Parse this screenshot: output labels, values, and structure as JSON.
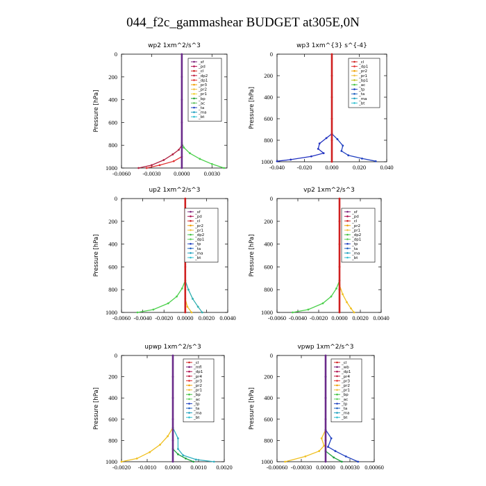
{
  "title": "044_f2c_gammashear  BUDGET at305E,0N",
  "chart_data": [
    {
      "type": "line",
      "title": "wp2   1xm^2/s^3",
      "ylabel": "Pressure [hPa]",
      "ylim": [
        1000,
        0
      ],
      "xlim": [
        -0.006,
        0.0045
      ],
      "xticks": [
        "-0.0060",
        "-0.0030",
        "0.0000",
        "0.0030"
      ],
      "xtick_values": [
        -0.006,
        -0.003,
        0.0,
        0.003
      ],
      "yticks": [
        0,
        200,
        400,
        600,
        800,
        1000
      ],
      "legend": [
        "_sf",
        "_pd",
        "_cl",
        "_dp2",
        "_dp1",
        "_pr3",
        "_pr2",
        "_pr1",
        "_bp",
        "_ac",
        "_ta",
        "_ma",
        "_bt"
      ],
      "legend_colors": [
        "#7a1f7a",
        "#b01050",
        "#d02020",
        "#c02040",
        "#e03030",
        "#f0a000",
        "#f0c040",
        "#f0d030",
        "#20a030",
        "#60c060",
        "#2040c0",
        "#20a0c0",
        "#30c0d0"
      ],
      "series": [
        {
          "name": "_pr2",
          "color": "#4cd04c",
          "x": [
            0.0,
            0.0002,
            0.0008,
            0.0018,
            0.003,
            0.0042
          ],
          "y": [
            780,
            820,
            870,
            920,
            965,
            1000
          ]
        },
        {
          "name": "_dp1",
          "color": "#b02040",
          "x": [
            0.0,
            -0.0003,
            -0.0009,
            -0.0018,
            -0.003,
            -0.0043
          ],
          "y": [
            800,
            840,
            880,
            930,
            975,
            1000
          ]
        },
        {
          "name": "_pr3",
          "color": "#e03030",
          "x": [
            0.0,
            -0.0008,
            -0.0022,
            -0.0035
          ],
          "y": [
            900,
            940,
            975,
            1000
          ]
        },
        {
          "name": "_sf",
          "color": "#6a2a8a",
          "x": [
            0.0,
            0.0,
            0.0,
            0.0,
            0.0,
            0.0
          ],
          "y": [
            0,
            200,
            400,
            600,
            800,
            1000
          ]
        }
      ]
    },
    {
      "type": "line",
      "title": "wp3   1xm^{3} s^{-4}",
      "ylabel": "Pressure [hPa]",
      "ylim": [
        1000,
        0
      ],
      "xlim": [
        -0.04,
        0.04
      ],
      "xticks": [
        "-0.040",
        "-0.020",
        "0.000",
        "0.020",
        "0.040"
      ],
      "xtick_values": [
        -0.04,
        -0.02,
        0.0,
        0.02,
        0.04
      ],
      "yticks": [
        0,
        200,
        400,
        600,
        800,
        1000
      ],
      "legend": [
        "_cl",
        "_dp1",
        "_pr2",
        "_pr1",
        "_bp1",
        "_ac",
        "_tp",
        "_ta",
        "_ma",
        "_bt"
      ],
      "legend_colors": [
        "#d02020",
        "#e03030",
        "#f0a000",
        "#f0c040",
        "#c0c020",
        "#40c040",
        "#2040c0",
        "#2060c0",
        "#20a0c0",
        "#30c0d0"
      ],
      "series": [
        {
          "name": "_tp",
          "color": "#2030c0",
          "x": [
            0.0,
            -0.004,
            -0.009,
            -0.01,
            -0.006,
            -0.015,
            -0.03,
            -0.04
          ],
          "y": [
            740,
            780,
            830,
            880,
            920,
            950,
            980,
            995
          ]
        },
        {
          "name": "_ta",
          "color": "#2040c0",
          "x": [
            0.0,
            0.004,
            0.008,
            0.007,
            0.012,
            0.022,
            0.032
          ],
          "y": [
            740,
            790,
            850,
            900,
            940,
            970,
            995
          ]
        },
        {
          "name": "_cl",
          "color": "#d02020",
          "x": [
            0.0,
            0.0,
            0.0,
            0.0,
            0.0,
            0.0
          ],
          "y": [
            0,
            200,
            400,
            600,
            800,
            1000
          ]
        }
      ]
    },
    {
      "type": "line",
      "title": "up2   1xm^2/s^3",
      "ylabel": "Pressure [hPa]",
      "ylim": [
        1000,
        0
      ],
      "xlim": [
        -0.006,
        0.004
      ],
      "xticks": [
        "-0.0060",
        "-0.0040",
        "-0.0020",
        "0.0000",
        "0.0020",
        "0.0040"
      ],
      "xtick_values": [
        -0.006,
        -0.004,
        -0.002,
        0.0,
        0.002,
        0.004
      ],
      "yticks": [
        0,
        200,
        400,
        600,
        800,
        1000
      ],
      "legend": [
        "_sf",
        "_pd",
        "_cl",
        "_pr2",
        "_pr1",
        "_dp2",
        "_dp1",
        "_tp",
        "_ta",
        "_ma",
        "_bt"
      ],
      "legend_colors": [
        "#7a1f7a",
        "#b01050",
        "#d02020",
        "#f0a000",
        "#f0c040",
        "#40c040",
        "#60d060",
        "#2040c0",
        "#2060c0",
        "#20a0c0",
        "#30c0d0"
      ],
      "series": [
        {
          "name": "_dp1",
          "color": "#4cd04c",
          "x": [
            0.0,
            -0.0003,
            -0.0008,
            -0.0016,
            -0.003,
            -0.0045
          ],
          "y": [
            720,
            790,
            860,
            920,
            975,
            1000
          ]
        },
        {
          "name": "_pr1",
          "color": "#30b0b0",
          "x": [
            0.0,
            0.0003,
            0.0007,
            0.0012,
            0.0016
          ],
          "y": [
            720,
            800,
            880,
            950,
            1000
          ]
        },
        {
          "name": "_pr2",
          "color": "#f0c020",
          "x": [
            0.0,
            0.0002,
            0.0006
          ],
          "y": [
            880,
            950,
            1000
          ]
        },
        {
          "name": "_cl",
          "color": "#d02020",
          "x": [
            0.0,
            0.0,
            0.0,
            0.0,
            0.0,
            0.0
          ],
          "y": [
            0,
            200,
            400,
            600,
            800,
            1000
          ]
        }
      ]
    },
    {
      "type": "line",
      "title": "vp2   1xm^2/s^3",
      "ylabel": "Pressure [hPa]",
      "ylim": [
        1000,
        0
      ],
      "xlim": [
        -0.006,
        0.004
      ],
      "xticks": [
        "-0.0060",
        "-0.0040",
        "-0.0020",
        "0.0000",
        "0.0020",
        "0.0040"
      ],
      "xtick_values": [
        -0.006,
        -0.004,
        -0.002,
        0.0,
        0.002,
        0.004
      ],
      "yticks": [
        0,
        200,
        400,
        600,
        800,
        1000
      ],
      "legend": [
        "_sf",
        "_pd",
        "_cl",
        "_pr2",
        "_pr1",
        "_dp2",
        "_dp1",
        "_tp",
        "_ta",
        "_ma",
        "_bt"
      ],
      "legend_colors": [
        "#7a1f7a",
        "#b01050",
        "#d02020",
        "#f0a000",
        "#f0c040",
        "#40c040",
        "#60d060",
        "#2040c0",
        "#2060c0",
        "#20a0c0",
        "#30c0d0"
      ],
      "series": [
        {
          "name": "_dp1",
          "color": "#4cd04c",
          "x": [
            0.0,
            -0.0003,
            -0.0008,
            -0.0016,
            -0.003,
            -0.0045
          ],
          "y": [
            720,
            790,
            860,
            920,
            975,
            1000
          ]
        },
        {
          "name": "_pr2",
          "color": "#f0c020",
          "x": [
            0.0,
            0.0003,
            0.0007,
            0.0011,
            0.0014
          ],
          "y": [
            760,
            840,
            910,
            965,
            1000
          ]
        },
        {
          "name": "_cl",
          "color": "#d02020",
          "x": [
            0.0,
            0.0,
            0.0,
            0.0,
            0.0,
            0.0
          ],
          "y": [
            0,
            200,
            400,
            600,
            800,
            1000
          ]
        }
      ]
    },
    {
      "type": "line",
      "title": "upwp   1xm^2/s^3",
      "ylabel": "Pressure [hPa]",
      "ylim": [
        1000,
        0
      ],
      "xlim": [
        -0.002,
        0.002
      ],
      "xticks": [
        "-0.0020",
        "-0.0010",
        "0.0000",
        "0.0010",
        "0.0020"
      ],
      "xtick_values": [
        -0.002,
        -0.001,
        0.0,
        0.001,
        0.002
      ],
      "yticks": [
        0,
        200,
        400,
        600,
        800,
        1000
      ],
      "legend": [
        "_cl",
        "_mfl",
        "_dp1",
        "_pr4",
        "_pr3",
        "_pr2",
        "_pr1",
        "_bp",
        "_ac",
        "_tp",
        "_ta",
        "_ma",
        "_bt"
      ],
      "legend_colors": [
        "#d02020",
        "#7a1f7a",
        "#b01050",
        "#c02040",
        "#e03030",
        "#f0a000",
        "#f0c040",
        "#40c040",
        "#60d060",
        "#2040c0",
        "#2060c0",
        "#20a0c0",
        "#30c0d0"
      ],
      "series": [
        {
          "name": "_pr2",
          "color": "#f0c020",
          "x": [
            0.0,
            -0.0002,
            -0.0005,
            -0.0009,
            -0.0014,
            -0.002
          ],
          "y": [
            680,
            760,
            840,
            910,
            970,
            1000
          ]
        },
        {
          "name": "_ac",
          "color": "#30b0c0",
          "x": [
            0.0,
            0.0002,
            0.0002,
            0.0004,
            0.0009,
            0.0016
          ],
          "y": [
            680,
            780,
            880,
            940,
            980,
            1000
          ]
        },
        {
          "name": "_tp",
          "color": "#20a040",
          "x": [
            0.0,
            0.0002,
            0.0005,
            0.0008
          ],
          "y": [
            880,
            930,
            970,
            1000
          ]
        },
        {
          "name": "_mfl",
          "color": "#6a2a8a",
          "x": [
            0.0,
            0.0,
            0.0,
            0.0,
            0.0,
            0.0
          ],
          "y": [
            0,
            200,
            400,
            600,
            800,
            1000
          ]
        }
      ]
    },
    {
      "type": "line",
      "title": "vpwp   1xm^2/s^3",
      "ylabel": "Pressure [hPa]",
      "ylim": [
        1000,
        0
      ],
      "xlim": [
        -0.0006,
        0.0006
      ],
      "xticks": [
        "-0.00060",
        "-0.00030",
        "0.00000",
        "0.00030",
        "0.00060"
      ],
      "xtick_values": [
        -0.0006,
        -0.0003,
        0.0,
        0.0003,
        0.0006
      ],
      "yticks": [
        0,
        200,
        400,
        600,
        800,
        1000
      ],
      "legend": [
        "_cl",
        "_wb",
        "_dp1",
        "_pr4",
        "_pr3",
        "_pr2",
        "_pr1",
        "_bp",
        "_ac",
        "_tp",
        "_ta",
        "_ma",
        "_bt"
      ],
      "legend_colors": [
        "#d02020",
        "#7a1f7a",
        "#b01050",
        "#c02040",
        "#e03030",
        "#f0a000",
        "#f0c040",
        "#40c040",
        "#60d060",
        "#2040c0",
        "#2060c0",
        "#20a0c0",
        "#30c0d0"
      ],
      "series": [
        {
          "name": "_pr2",
          "color": "#f0c020",
          "x": [
            0.0,
            -5e-05,
            -2e-05,
            -8e-05,
            -0.00025,
            -0.0005
          ],
          "y": [
            700,
            780,
            850,
            900,
            950,
            1000
          ]
        },
        {
          "name": "_ta",
          "color": "#2040c0",
          "x": [
            0.0,
            7e-05,
            3e-05,
            0.00012,
            0.00025,
            0.0004
          ],
          "y": [
            700,
            780,
            860,
            900,
            950,
            1000
          ]
        },
        {
          "name": "_bp",
          "color": "#20a040",
          "x": [
            0.0,
            0.0001,
            0.0002
          ],
          "y": [
            900,
            960,
            1000
          ]
        },
        {
          "name": "_cl",
          "color": "#6a2a8a",
          "x": [
            0.0,
            0.0,
            0.0,
            0.0,
            0.0,
            0.0
          ],
          "y": [
            0,
            200,
            400,
            600,
            800,
            1000
          ]
        }
      ]
    }
  ]
}
